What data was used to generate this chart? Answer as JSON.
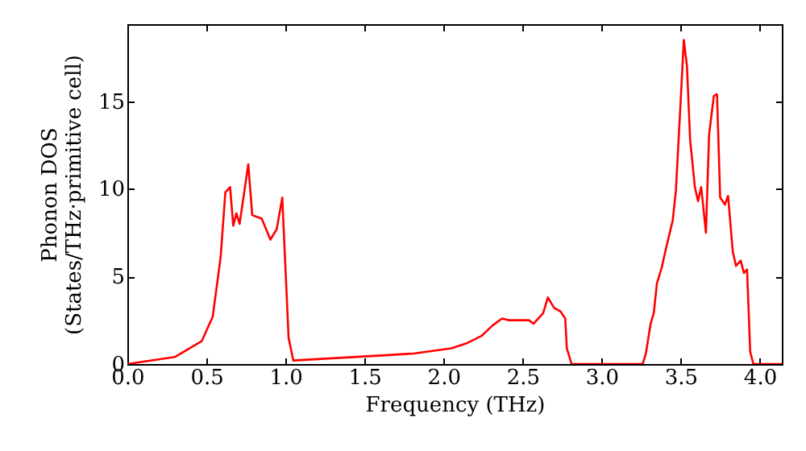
{
  "chart_data": {
    "type": "line",
    "xlabel": "Frequency (THz)",
    "ylabel": "Phonon DOS\n(States/THz·primitive cell)",
    "xlim": [
      0,
      4.14
    ],
    "ylim": [
      0,
      19.4
    ],
    "xticks": [
      {
        "value": 0,
        "label": "0.0"
      },
      {
        "value": 0.5,
        "label": "0.5"
      },
      {
        "value": 1,
        "label": "1.0"
      },
      {
        "value": 1.5,
        "label": "1.5"
      },
      {
        "value": 2,
        "label": "2.0"
      },
      {
        "value": 2.5,
        "label": "2.5"
      },
      {
        "value": 3,
        "label": "3.0"
      },
      {
        "value": 3.5,
        "label": "3.5"
      },
      {
        "value": 4,
        "label": "4.0"
      }
    ],
    "yticks": [
      0,
      5,
      10,
      15
    ],
    "grid": false,
    "marker": "none",
    "line_style": "solid",
    "series": [
      {
        "color": "#ff0000",
        "x": [
          0,
          0.3,
          0.47,
          0.54,
          0.59,
          0.62,
          0.65,
          0.67,
          0.69,
          0.71,
          0.765,
          0.79,
          0.85,
          0.905,
          0.945,
          0.98,
          0.997,
          1.02,
          1.05,
          1.63,
          1.81,
          2.05,
          2.15,
          2.24,
          2.31,
          2.37,
          2.41,
          2.54,
          2.57,
          2.63,
          2.66,
          2.7,
          2.74,
          2.77,
          2.78,
          2.81,
          3.26,
          3.28,
          3.31,
          3.33,
          3.35,
          3.38,
          3.41,
          3.45,
          3.47,
          3.5,
          3.52,
          3.54,
          3.56,
          3.59,
          3.61,
          3.63,
          3.66,
          3.68,
          3.71,
          3.73,
          3.75,
          3.78,
          3.8,
          3.83,
          3.85,
          3.88,
          3.9,
          3.92,
          3.94,
          3.96,
          4.14
        ],
        "values": [
          0,
          0.4,
          1.3,
          2.7,
          6.1,
          9.8,
          10.1,
          7.9,
          8.6,
          8.0,
          11.4,
          8.5,
          8.3,
          7.1,
          7.7,
          9.5,
          6.1,
          1.5,
          0.2,
          0.5,
          0.6,
          0.9,
          1.2,
          1.6,
          2.2,
          2.6,
          2.5,
          2.5,
          2.3,
          2.9,
          3.8,
          3.2,
          3.0,
          2.6,
          0.9,
          0,
          0,
          0.6,
          2.3,
          2.9,
          4.6,
          5.5,
          6.7,
          8.2,
          9.9,
          15.0,
          18.5,
          17.0,
          12.8,
          10.1,
          9.3,
          10.1,
          7.5,
          13.1,
          15.3,
          15.4,
          9.5,
          9.1,
          9.6,
          6.4,
          5.6,
          5.9,
          5.2,
          5.4,
          0.7,
          0,
          0
        ]
      }
    ]
  }
}
